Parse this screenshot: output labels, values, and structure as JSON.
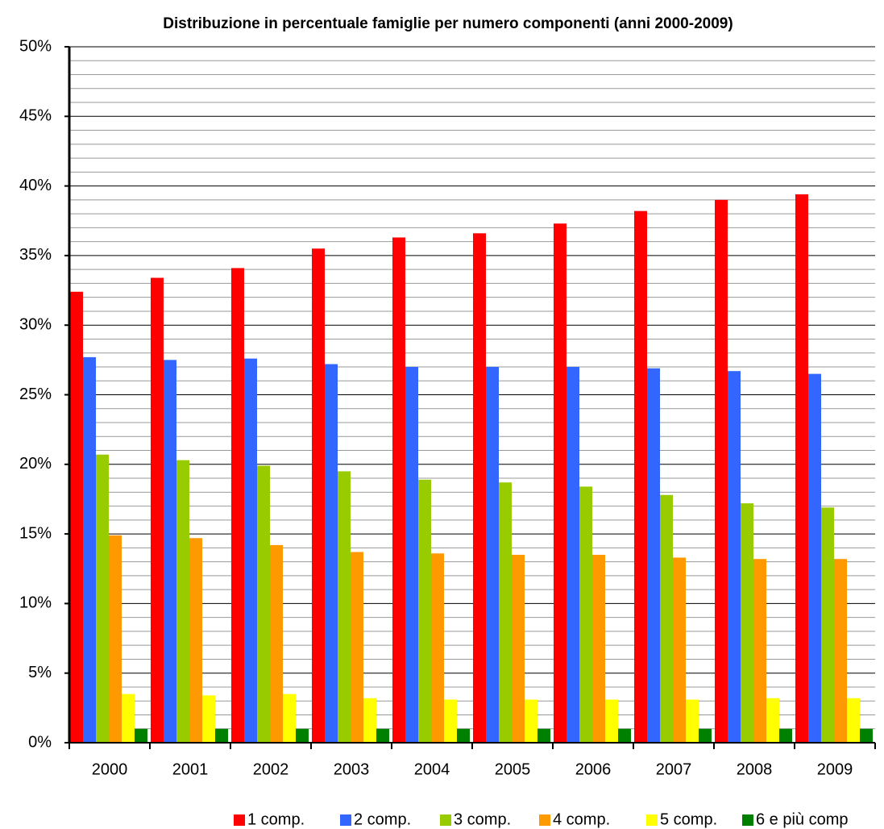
{
  "chart_data": {
    "type": "bar",
    "title": "Distribuzione in percentuale famiglie per numero componenti (anni 2000-2009)",
    "categories": [
      "2000",
      "2001",
      "2002",
      "2003",
      "2004",
      "2005",
      "2006",
      "2007",
      "2008",
      "2009"
    ],
    "series": [
      {
        "name": "1 comp.",
        "color": "#ff0000",
        "values": [
          32.4,
          33.4,
          34.1,
          35.5,
          36.3,
          36.6,
          37.3,
          38.2,
          39.0,
          39.4
        ]
      },
      {
        "name": "2 comp.",
        "color": "#3366ff",
        "values": [
          27.7,
          27.5,
          27.6,
          27.2,
          27.0,
          27.0,
          27.0,
          26.9,
          26.7,
          26.5
        ]
      },
      {
        "name": "3 comp.",
        "color": "#99cc00",
        "values": [
          20.7,
          20.3,
          19.9,
          19.5,
          18.9,
          18.7,
          18.4,
          17.8,
          17.2,
          16.9
        ]
      },
      {
        "name": "4 comp.",
        "color": "#ff9900",
        "values": [
          14.9,
          14.7,
          14.2,
          13.7,
          13.6,
          13.5,
          13.5,
          13.3,
          13.2,
          13.2
        ]
      },
      {
        "name": "5 comp.",
        "color": "#ffff00",
        "values": [
          3.5,
          3.4,
          3.5,
          3.2,
          3.1,
          3.1,
          3.1,
          3.1,
          3.2,
          3.2
        ]
      },
      {
        "name": "6 e più comp",
        "color": "#008000",
        "values": [
          1.0,
          1.0,
          1.0,
          1.0,
          1.0,
          1.0,
          1.0,
          1.0,
          1.0,
          1.0
        ]
      }
    ],
    "ylim": [
      0,
      50
    ],
    "yticks": [
      {
        "value": 0,
        "label": "0%"
      },
      {
        "value": 5,
        "label": "5%"
      },
      {
        "value": 10,
        "label": "10%"
      },
      {
        "value": 15,
        "label": "15%"
      },
      {
        "value": 20,
        "label": "20%"
      },
      {
        "value": 25,
        "label": "25%"
      },
      {
        "value": 30,
        "label": "30%"
      },
      {
        "value": 35,
        "label": "35%"
      },
      {
        "value": 40,
        "label": "40%"
      },
      {
        "value": 45,
        "label": "45%"
      },
      {
        "value": 50,
        "label": "50%"
      }
    ],
    "minor_yticks": [
      1,
      2,
      3,
      4,
      6,
      7,
      8,
      9,
      11,
      12,
      13,
      14,
      16,
      17,
      18,
      19,
      21,
      22,
      23,
      24,
      26,
      27,
      28,
      29,
      31,
      32,
      33,
      34,
      36,
      37,
      38,
      39,
      41,
      42,
      43,
      44,
      46,
      47,
      48,
      49
    ],
    "grid": true,
    "legend": "bottom-right"
  }
}
